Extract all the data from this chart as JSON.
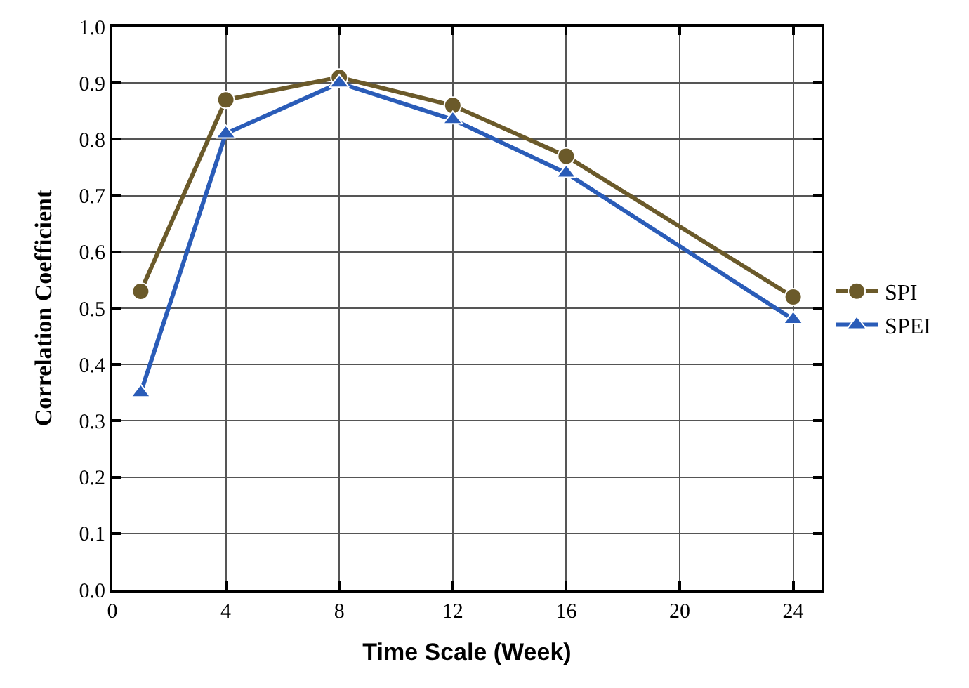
{
  "chart_data": {
    "type": "line",
    "xlabel": "Time Scale (Week)",
    "ylabel": "Correlation Coefficient",
    "x": [
      1,
      4,
      8,
      12,
      16,
      24
    ],
    "series": [
      {
        "name": "SPI",
        "color": "#6b5a2a",
        "marker": "circle",
        "values": [
          0.53,
          0.87,
          0.91,
          0.86,
          0.77,
          0.52
        ]
      },
      {
        "name": "SPEI",
        "color": "#2a5cb8",
        "marker": "triangle",
        "values": [
          0.35,
          0.81,
          0.9,
          0.835,
          0.74,
          0.48
        ]
      }
    ],
    "xlim": [
      0,
      25
    ],
    "xticks": [
      0,
      4,
      8,
      12,
      16,
      20,
      24
    ],
    "ylim": [
      0,
      1
    ],
    "yticks": [
      {
        "value": 0,
        "label": "0.0"
      },
      {
        "value": 0.1,
        "label": "0.1"
      },
      {
        "value": 0.2,
        "label": "0.2"
      },
      {
        "value": 0.3,
        "label": "0.3"
      },
      {
        "value": 0.4,
        "label": "0.4"
      },
      {
        "value": 0.5,
        "label": "0.5"
      },
      {
        "value": 0.6,
        "label": "0.6"
      },
      {
        "value": 0.7,
        "label": "0.7"
      },
      {
        "value": 0.8,
        "label": "0.8"
      },
      {
        "value": 0.9,
        "label": "0.9"
      },
      {
        "value": 1,
        "label": "1.0"
      }
    ],
    "grid": true,
    "legend": "right",
    "line_style": "solid"
  }
}
